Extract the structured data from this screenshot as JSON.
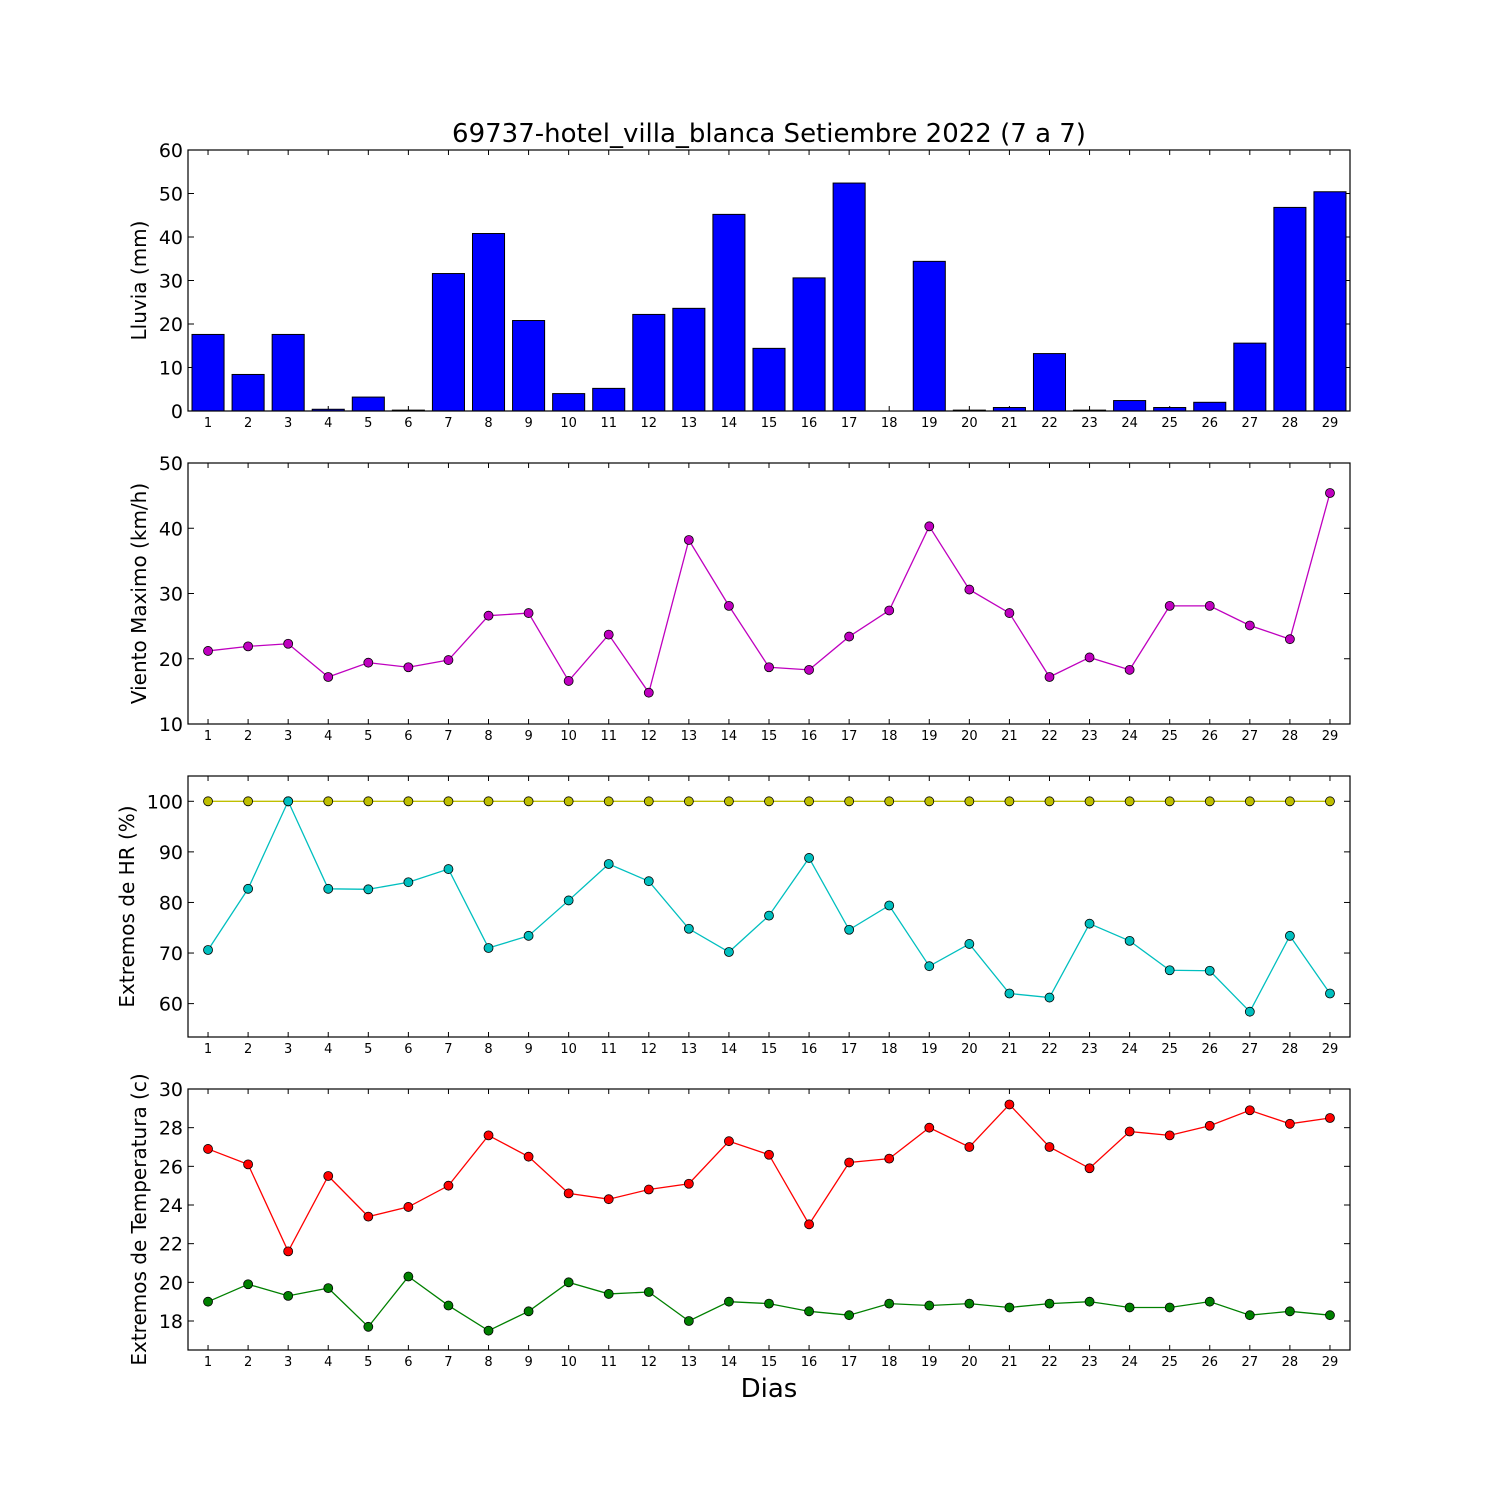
{
  "chart_data": [
    {
      "type": "bar",
      "title": "69737-hotel_villa_blanca Setiembre 2022  (7 a 7)",
      "xlabel": "",
      "ylabel": "Lluvia (mm)",
      "ylim": [
        0,
        60
      ],
      "yticks": [
        0,
        10,
        20,
        30,
        40,
        50,
        60
      ],
      "categories": [
        "1",
        "2",
        "3",
        "4",
        "5",
        "6",
        "7",
        "8",
        "9",
        "10",
        "11",
        "12",
        "13",
        "14",
        "15",
        "16",
        "17",
        "18",
        "19",
        "20",
        "21",
        "22",
        "23",
        "24",
        "25",
        "26",
        "27",
        "28",
        "29"
      ],
      "values": [
        17.6,
        8.4,
        17.6,
        0.4,
        3.2,
        0.2,
        31.6,
        40.8,
        20.8,
        4.0,
        5.2,
        22.2,
        23.6,
        45.2,
        14.4,
        30.6,
        52.4,
        0.0,
        34.4,
        0.2,
        0.8,
        13.2,
        0.2,
        2.4,
        0.8,
        2.0,
        15.6,
        46.8,
        50.4
      ],
      "color": "#0000ff"
    },
    {
      "type": "line",
      "xlabel": "",
      "ylabel": "Viento Maximo (km/h)",
      "ylim": [
        10,
        50
      ],
      "yticks": [
        10,
        20,
        30,
        40,
        50
      ],
      "x": [
        1,
        2,
        3,
        4,
        5,
        6,
        7,
        8,
        9,
        10,
        11,
        12,
        13,
        14,
        15,
        16,
        17,
        18,
        19,
        20,
        21,
        22,
        23,
        24,
        25,
        26,
        27,
        28,
        29
      ],
      "series": [
        {
          "values": [
            21.2,
            21.9,
            22.3,
            17.2,
            19.4,
            18.7,
            19.8,
            26.6,
            27.0,
            16.6,
            23.7,
            14.8,
            38.2,
            28.1,
            18.7,
            18.3,
            23.4,
            27.4,
            40.3,
            30.6,
            27.0,
            17.2,
            20.2,
            18.3,
            28.1,
            28.1,
            25.1,
            23.0,
            45.4
          ],
          "color": "#bf00bf"
        }
      ]
    },
    {
      "type": "line",
      "xlabel": "",
      "ylabel": "Extremos de HR (%)",
      "ylim": [
        53.4,
        105
      ],
      "yticks": [
        60,
        70,
        80,
        90,
        100
      ],
      "x": [
        1,
        2,
        3,
        4,
        5,
        6,
        7,
        8,
        9,
        10,
        11,
        12,
        13,
        14,
        15,
        16,
        17,
        18,
        19,
        20,
        21,
        22,
        23,
        24,
        25,
        26,
        27,
        28,
        29
      ],
      "series": [
        {
          "values": [
            100,
            100,
            100,
            100,
            100,
            100,
            100,
            100,
            100,
            100,
            100,
            100,
            100,
            100,
            100,
            100,
            100,
            100,
            100,
            100,
            100,
            100,
            100,
            100,
            100,
            100,
            100,
            100,
            100
          ],
          "color": "#bfbf00"
        },
        {
          "values": [
            70.6,
            82.7,
            100.0,
            82.7,
            82.6,
            84.0,
            86.6,
            71.0,
            73.4,
            80.4,
            87.6,
            84.2,
            74.8,
            70.2,
            77.4,
            88.8,
            74.6,
            79.4,
            67.4,
            71.8,
            62.0,
            61.2,
            75.8,
            72.4,
            66.6,
            66.5,
            58.4,
            73.4,
            62.0
          ],
          "color": "#00bfbf"
        }
      ]
    },
    {
      "type": "line",
      "xlabel": "Dias",
      "ylabel": "Extremos de Temperatura (c)",
      "ylim": [
        16.5,
        30
      ],
      "yticks": [
        18,
        20,
        22,
        24,
        26,
        28,
        30
      ],
      "x": [
        1,
        2,
        3,
        4,
        5,
        6,
        7,
        8,
        9,
        10,
        11,
        12,
        13,
        14,
        15,
        16,
        17,
        18,
        19,
        20,
        21,
        22,
        23,
        24,
        25,
        26,
        27,
        28,
        29
      ],
      "series": [
        {
          "values": [
            26.9,
            26.1,
            21.6,
            25.5,
            23.4,
            23.9,
            25.0,
            27.6,
            26.5,
            24.6,
            24.3,
            24.8,
            25.1,
            27.3,
            26.6,
            23.0,
            26.2,
            26.4,
            28.0,
            27.0,
            29.2,
            27.0,
            25.9,
            27.8,
            27.6,
            28.1,
            28.9,
            28.2,
            28.5
          ],
          "color": "#ff0000"
        },
        {
          "values": [
            19.0,
            19.9,
            19.3,
            19.7,
            17.7,
            20.3,
            18.8,
            17.5,
            18.5,
            20.0,
            19.4,
            19.5,
            18.0,
            19.0,
            18.9,
            18.5,
            18.3,
            18.9,
            18.8,
            18.9,
            18.7,
            18.9,
            19.0,
            18.7,
            18.7,
            19.0,
            18.3,
            18.5,
            18.3
          ],
          "color": "#008000"
        }
      ]
    }
  ]
}
